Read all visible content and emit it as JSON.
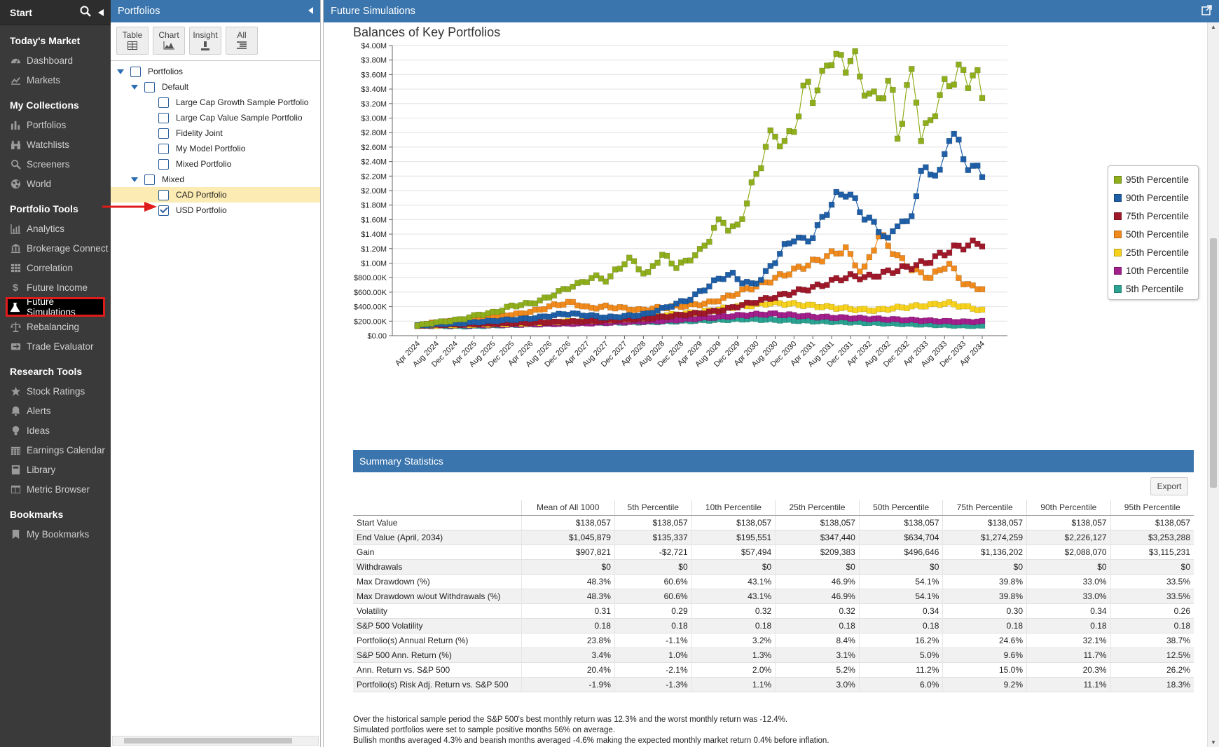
{
  "nav": {
    "start_label": "Start",
    "sections": [
      {
        "title": "Today's Market",
        "items": [
          {
            "label": "Dashboard",
            "icon": "dashboard-icon"
          },
          {
            "label": "Markets",
            "icon": "markets-icon"
          }
        ]
      },
      {
        "title": "My Collections",
        "items": [
          {
            "label": "Portfolios",
            "icon": "portfolios-icon"
          },
          {
            "label": "Watchlists",
            "icon": "binoculars-icon"
          },
          {
            "label": "Screeners",
            "icon": "search-icon"
          },
          {
            "label": "World",
            "icon": "globe-icon"
          }
        ]
      },
      {
        "title": "Portfolio Tools",
        "items": [
          {
            "label": "Analytics",
            "icon": "analytics-icon"
          },
          {
            "label": "Brokerage Connect",
            "icon": "bank-icon"
          },
          {
            "label": "Correlation",
            "icon": "grid-icon"
          },
          {
            "label": "Future Income",
            "icon": "dollar-icon"
          },
          {
            "label": "Future Simulations",
            "icon": "flask-icon",
            "active": true
          },
          {
            "label": "Rebalancing",
            "icon": "scale-icon"
          },
          {
            "label": "Trade Evaluator",
            "icon": "trade-icon"
          }
        ]
      },
      {
        "title": "Research Tools",
        "items": [
          {
            "label": "Stock Ratings",
            "icon": "star-icon"
          },
          {
            "label": "Alerts",
            "icon": "bell-icon"
          },
          {
            "label": "Ideas",
            "icon": "lightbulb-icon"
          },
          {
            "label": "Earnings Calendar",
            "icon": "calendar-icon"
          },
          {
            "label": "Library",
            "icon": "book-icon"
          },
          {
            "label": "Metric Browser",
            "icon": "browser-icon"
          }
        ]
      },
      {
        "title": "Bookmarks",
        "items": [
          {
            "label": "My Bookmarks",
            "icon": "bookmark-icon"
          }
        ]
      }
    ]
  },
  "portfolios_panel": {
    "title": "Portfolios",
    "toolbar": [
      {
        "label": "Table",
        "icon": "table-icon"
      },
      {
        "label": "Chart",
        "icon": "chart-icon"
      },
      {
        "label": "Insight",
        "icon": "insight-icon"
      },
      {
        "label": "All",
        "icon": "list-icon"
      }
    ],
    "tree": [
      {
        "label": "Portfolios",
        "level": 0,
        "toggle": true,
        "checked": false
      },
      {
        "label": "Default",
        "level": 1,
        "toggle": true,
        "checked": false
      },
      {
        "label": "Large Cap Growth Sample Portfolio",
        "level": 2,
        "checked": false
      },
      {
        "label": "Large Cap Value Sample Portfolio",
        "level": 2,
        "checked": false
      },
      {
        "label": "Fidelity Joint",
        "level": 2,
        "checked": false
      },
      {
        "label": "My Model Portfolio",
        "level": 2,
        "checked": false
      },
      {
        "label": "Mixed Portfolio",
        "level": 2,
        "checked": false
      },
      {
        "label": "Mixed",
        "level": 1,
        "toggle": true,
        "checked": false
      },
      {
        "label": "CAD Portfolio",
        "level": 2,
        "checked": false,
        "highlight": true
      },
      {
        "label": "USD Portfolio",
        "level": 2,
        "checked": true
      }
    ]
  },
  "main": {
    "title": "Future Simulations",
    "summary": {
      "title": "Summary Statistics",
      "export_label": "Export",
      "columns": [
        "",
        "Mean of All 1000",
        "5th Percentile",
        "10th Percentile",
        "25th Percentile",
        "50th Percentile",
        "75th Percentile",
        "90th Percentile",
        "95th Percentile"
      ],
      "rows": [
        [
          "Start Value",
          "$138,057",
          "$138,057",
          "$138,057",
          "$138,057",
          "$138,057",
          "$138,057",
          "$138,057",
          "$138,057"
        ],
        [
          "End Value (April, 2034)",
          "$1,045,879",
          "$135,337",
          "$195,551",
          "$347,440",
          "$634,704",
          "$1,274,259",
          "$2,226,127",
          "$3,253,288"
        ],
        [
          "Gain",
          "$907,821",
          "-$2,721",
          "$57,494",
          "$209,383",
          "$496,646",
          "$1,136,202",
          "$2,088,070",
          "$3,115,231"
        ],
        [
          "Withdrawals",
          "$0",
          "$0",
          "$0",
          "$0",
          "$0",
          "$0",
          "$0",
          "$0"
        ],
        [
          "Max Drawdown (%)",
          "48.3%",
          "60.6%",
          "43.1%",
          "46.9%",
          "54.1%",
          "39.8%",
          "33.0%",
          "33.5%"
        ],
        [
          "Max Drawdown w/out Withdrawals (%)",
          "48.3%",
          "60.6%",
          "43.1%",
          "46.9%",
          "54.1%",
          "39.8%",
          "33.0%",
          "33.5%"
        ],
        [
          "Volatility",
          "0.31",
          "0.29",
          "0.32",
          "0.32",
          "0.34",
          "0.30",
          "0.34",
          "0.26"
        ],
        [
          "S&P 500 Volatility",
          "0.18",
          "0.18",
          "0.18",
          "0.18",
          "0.18",
          "0.18",
          "0.18",
          "0.18"
        ],
        [
          "Portfolio(s) Annual Return (%)",
          "23.8%",
          "-1.1%",
          "3.2%",
          "8.4%",
          "16.2%",
          "24.6%",
          "32.1%",
          "38.7%"
        ],
        [
          "S&P 500 Ann. Return (%)",
          "3.4%",
          "1.0%",
          "1.3%",
          "3.1%",
          "5.0%",
          "9.6%",
          "11.7%",
          "12.5%"
        ],
        [
          "Ann. Return vs. S&P 500",
          "20.4%",
          "-2.1%",
          "2.0%",
          "5.2%",
          "11.2%",
          "15.0%",
          "20.3%",
          "26.2%"
        ],
        [
          "Portfolio(s) Risk Adj. Return vs. S&P 500",
          "-1.9%",
          "-1.3%",
          "1.1%",
          "3.0%",
          "6.0%",
          "9.2%",
          "11.1%",
          "18.3%"
        ]
      ],
      "notes": [
        "Over the historical sample period the S&P 500's best monthly return was 12.3% and the worst monthly return was -12.4%.",
        "Simulated portfolios were set to sample positive months 56% on average.",
        "Bullish months averaged 4.3% and bearish months averaged -4.6% making the expected monthly market return 0.4% before inflation."
      ]
    }
  },
  "chart_data": {
    "type": "line",
    "title": "Balances of Key Portfolios",
    "xlabel": "",
    "ylabel": "",
    "ylim": [
      0,
      4000000
    ],
    "y_ticks": [
      "$0.00",
      "$200.00K",
      "$400.00K",
      "$600.00K",
      "$800.00K",
      "$1.00M",
      "$1.20M",
      "$1.40M",
      "$1.60M",
      "$1.80M",
      "$2.00M",
      "$2.20M",
      "$2.40M",
      "$2.60M",
      "$2.80M",
      "$3.00M",
      "$3.20M",
      "$3.40M",
      "$3.60M",
      "$3.80M",
      "$4.00M"
    ],
    "x_ticks": [
      "Apr 2024",
      "Aug 2024",
      "Dec 2024",
      "Apr 2025",
      "Aug 2025",
      "Dec 2025",
      "Apr 2026",
      "Aug 2026",
      "Dec 2026",
      "Apr 2027",
      "Aug 2027",
      "Dec 2027",
      "Apr 2028",
      "Aug 2028",
      "Dec 2028",
      "Apr 2029",
      "Aug 2029",
      "Dec 2029",
      "Apr 2030",
      "Aug 2030",
      "Dec 2030",
      "Apr 2031",
      "Aug 2031",
      "Dec 2031",
      "Apr 2032",
      "Aug 2032",
      "Dec 2032",
      "Apr 2033",
      "Aug 2033",
      "Dec 2033",
      "Apr 2034"
    ],
    "legend_position": "right",
    "grid": true,
    "series": [
      {
        "name": "95th Percentile",
        "color": "#8fae1b",
        "values": [
          138057,
          160000,
          175000,
          190000,
          200000,
          215000,
          230000,
          260000,
          290000,
          300000,
          320000,
          350000,
          400000,
          420000,
          430000,
          450000,
          480000,
          520000,
          580000,
          620000,
          680000,
          700000,
          760000,
          800000,
          800000,
          760000,
          900000,
          1000000,
          1050000,
          950000,
          800000,
          1000000,
          1100000,
          1050000,
          950000,
          1000000,
          1100000,
          1150000,
          1300000,
          1500000,
          1600000,
          1450000,
          1500000,
          1800000,
          2100000,
          2400000,
          2700000,
          2800000,
          2600000,
          2800000,
          3100000,
          3500000,
          3300000,
          3500000,
          3900000,
          3800000,
          3700000,
          3950000,
          3500000,
          3400000,
          3200000,
          3400000,
          3500000,
          2700000,
          3300000,
          3700000,
          2700000,
          2900000,
          3200000,
          3400000,
          3550000,
          3650000,
          3500000,
          3700000,
          3250000
        ]
      },
      {
        "name": "90th Percentile",
        "color": "#1f5fa8",
        "values": [
          138057,
          150000,
          160000,
          165000,
          170000,
          180000,
          190000,
          200000,
          210000,
          220000,
          230000,
          240000,
          260000,
          280000,
          300000,
          300000,
          280000,
          270000,
          250000,
          260000,
          270000,
          280000,
          300000,
          350000,
          400000,
          450000,
          500000,
          600000,
          700000,
          800000,
          850000,
          750000,
          700000,
          800000,
          1000000,
          1200000,
          1350000,
          1300000,
          1400000,
          1700000,
          1900000,
          2000000,
          1800000,
          1600000,
          1500000,
          1300000,
          1600000,
          1500000,
          2200000,
          2300000,
          2200000,
          2900000,
          2500000,
          2300000,
          2250000
        ]
      },
      {
        "name": "75th Percentile",
        "color": "#a0192a",
        "values": [
          138057,
          145000,
          150000,
          155000,
          160000,
          165000,
          170000,
          175000,
          180000,
          185000,
          190000,
          195000,
          200000,
          210000,
          220000,
          230000,
          240000,
          260000,
          280000,
          300000,
          320000,
          350000,
          400000,
          450000,
          500000,
          550000,
          600000,
          650000,
          700000,
          780000,
          820000,
          800000,
          850000,
          900000,
          950000,
          1000000,
          1100000,
          1200000,
          1250000,
          1280000
        ]
      },
      {
        "name": "50th Percentile",
        "color": "#f08a1c",
        "values": [
          138057,
          180000,
          200000,
          220000,
          250000,
          280000,
          300000,
          350000,
          420000,
          460000,
          380000,
          400000,
          380000,
          350000,
          380000,
          400000,
          420000,
          450000,
          520000,
          620000,
          700000,
          800000,
          900000,
          1000000,
          1100000,
          1200000,
          850000,
          1400000,
          1100000,
          900000,
          800000,
          1000000,
          700000,
          650000
        ]
      },
      {
        "name": "25th Percentile",
        "color": "#f7d21d",
        "values": [
          138057,
          140000,
          145000,
          150000,
          155000,
          160000,
          170000,
          180000,
          190000,
          200000,
          210000,
          220000,
          230000,
          250000,
          280000,
          300000,
          320000,
          360000,
          400000,
          420000,
          450000,
          440000,
          420000,
          400000,
          380000,
          360000,
          350000,
          380000,
          400000,
          420000,
          450000,
          400000,
          350000
        ]
      },
      {
        "name": "10th Percentile",
        "color": "#a21f8c",
        "values": [
          138057,
          140000,
          142000,
          145000,
          150000,
          155000,
          160000,
          165000,
          170000,
          180000,
          190000,
          200000,
          210000,
          230000,
          250000,
          270000,
          290000,
          300000,
          280000,
          260000,
          250000,
          240000,
          230000,
          220000,
          210000,
          200000,
          190000,
          195551
        ]
      },
      {
        "name": "5th Percentile",
        "color": "#2aa392",
        "values": [
          138057,
          135000,
          130000,
          140000,
          150000,
          160000,
          170000,
          175000,
          180000,
          185000,
          190000,
          200000,
          210000,
          220000,
          230000,
          220000,
          210000,
          200000,
          190000,
          180000,
          170000,
          160000,
          150000,
          140000,
          135337
        ]
      }
    ]
  }
}
